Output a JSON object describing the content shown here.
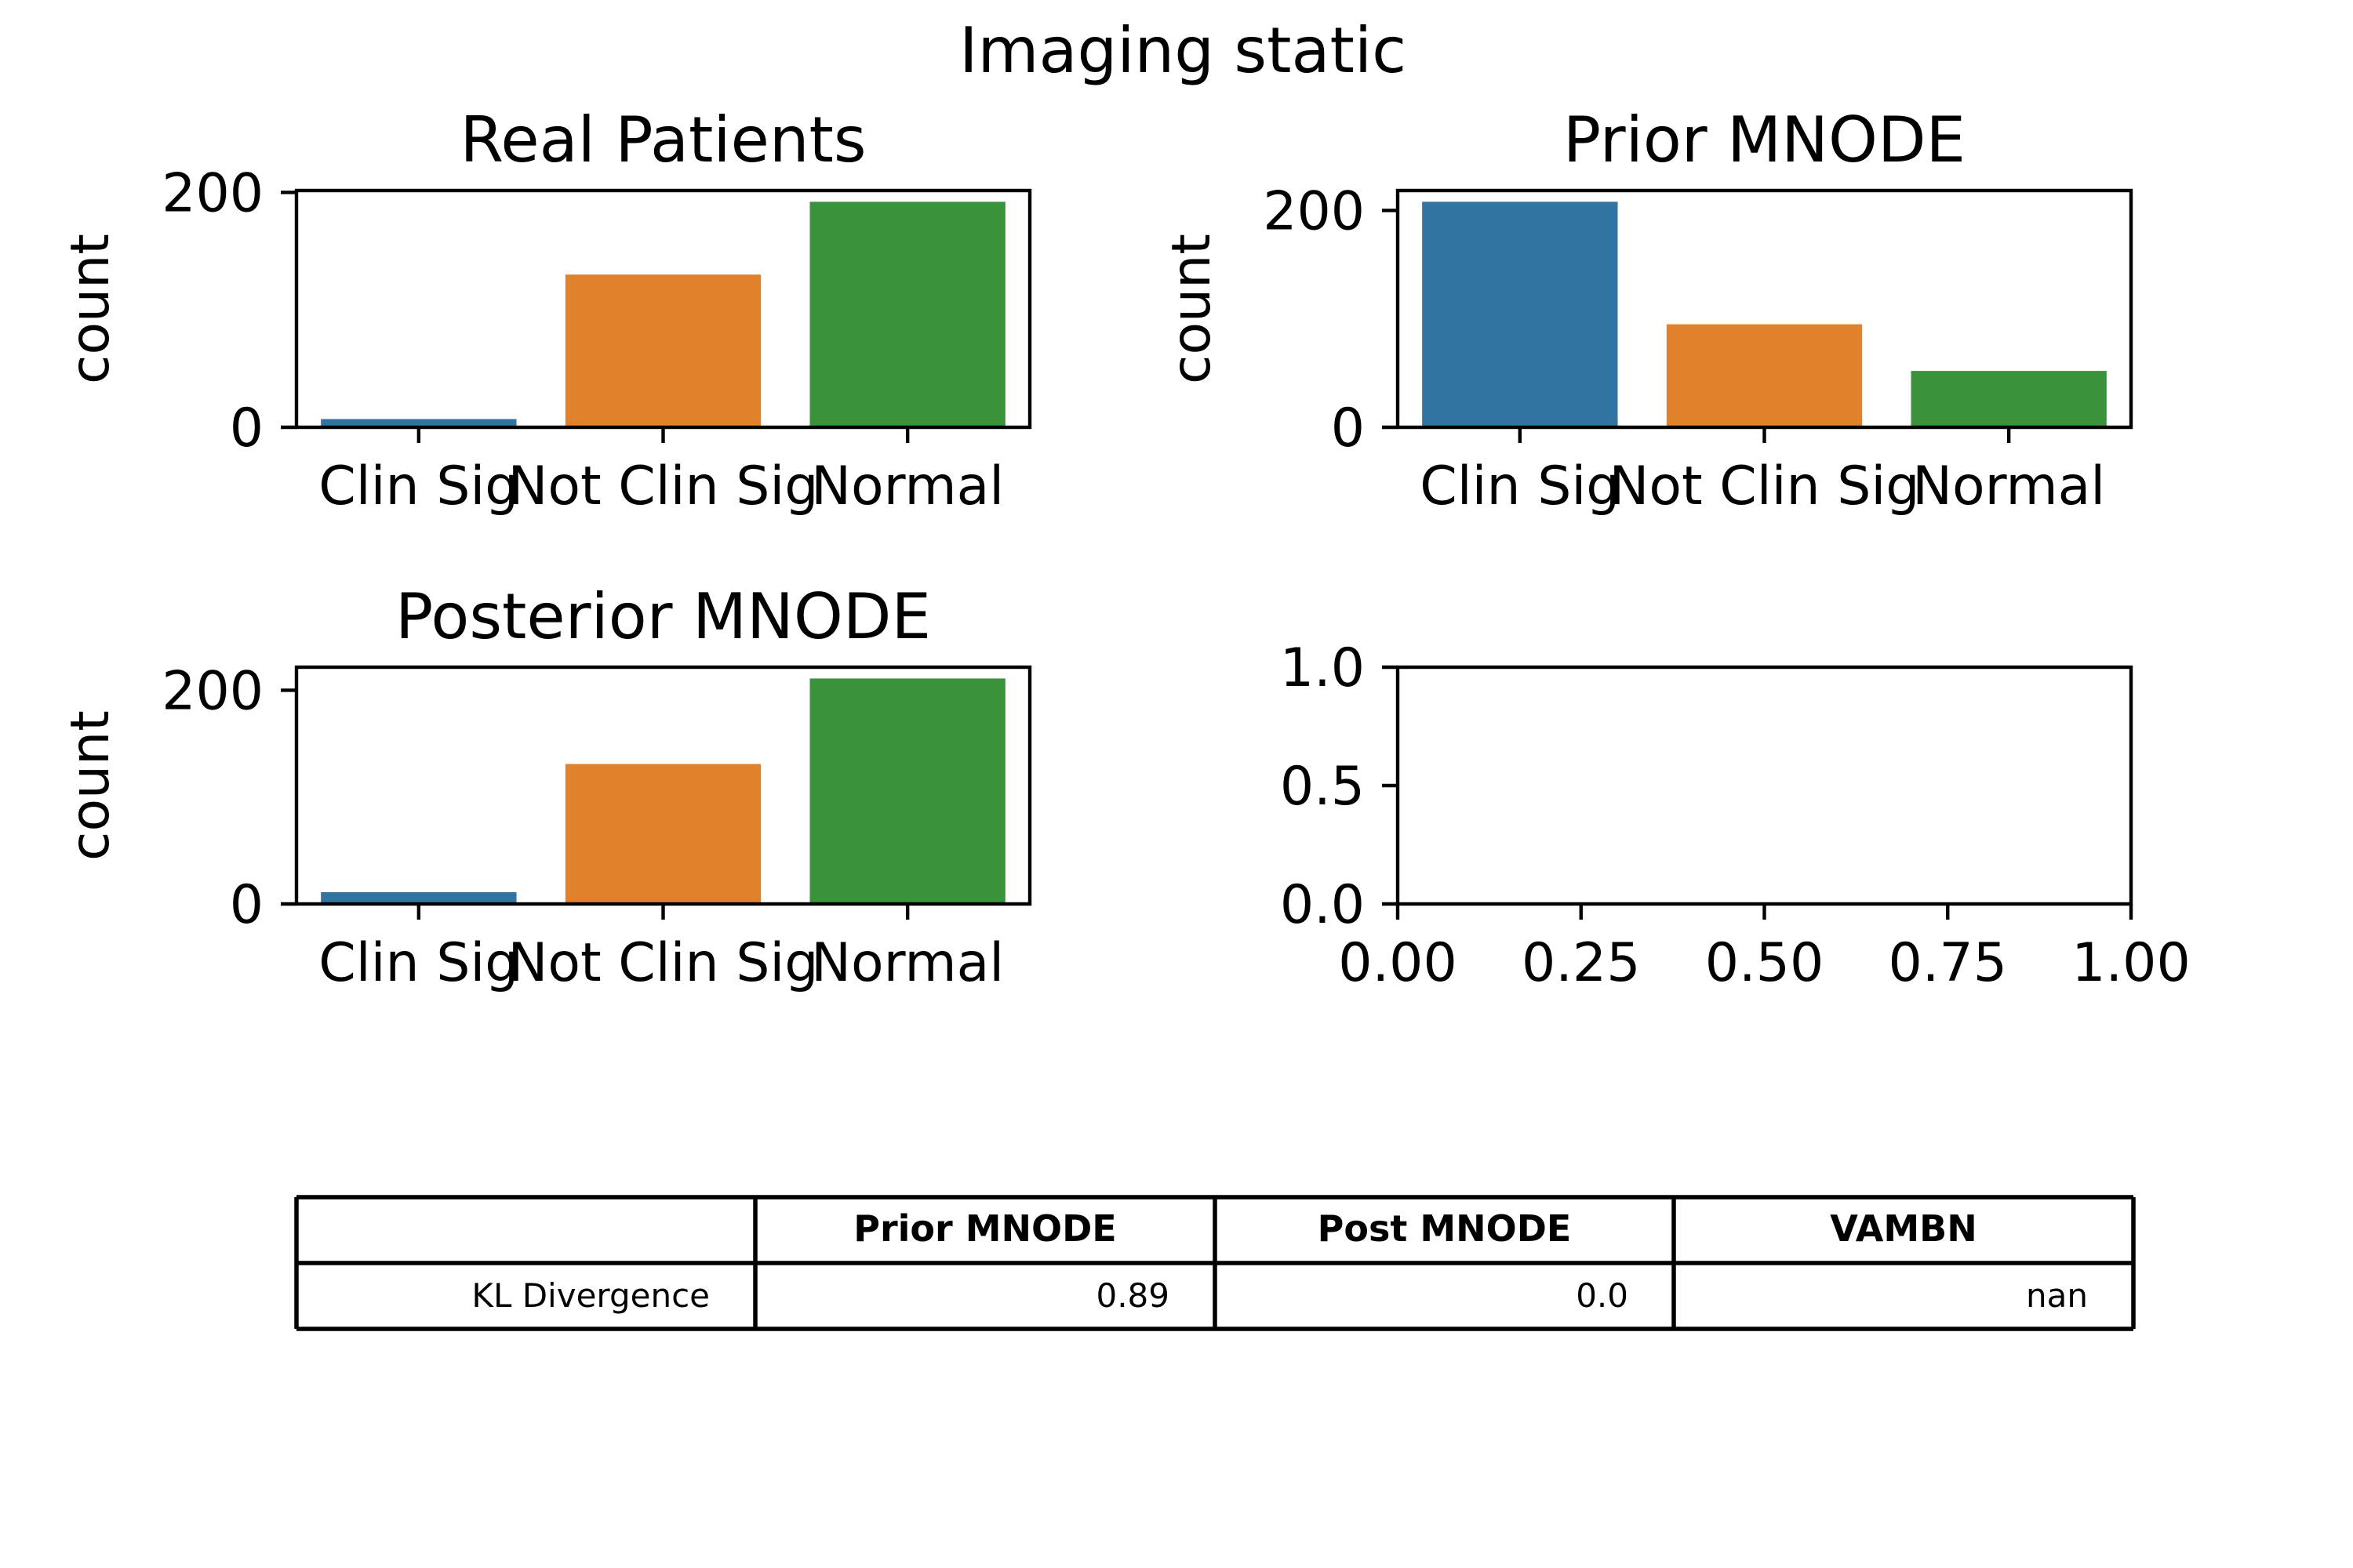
{
  "figure": {
    "title": "Imaging static"
  },
  "chart_data": [
    {
      "type": "bar",
      "title": "Real Patients",
      "xlabel": "",
      "ylabel": "count",
      "categories": [
        "Clin Sig",
        "Not Clin Sig",
        "Normal"
      ],
      "values": [
        7,
        130,
        192
      ],
      "colors": [
        "#3274a1",
        "#e1812c",
        "#3a923a"
      ],
      "ylim": [
        0,
        201.6
      ],
      "yticks": [
        0,
        200
      ]
    },
    {
      "type": "bar",
      "title": "Prior MNODE",
      "xlabel": "",
      "ylabel": "count",
      "categories": [
        "Clin Sig",
        "Not Clin Sig",
        "Normal"
      ],
      "values": [
        208,
        95,
        52
      ],
      "colors": [
        "#3274a1",
        "#e1812c",
        "#3a923a"
      ],
      "ylim": [
        0,
        218.4
      ],
      "yticks": [
        0,
        200
      ]
    },
    {
      "type": "bar",
      "title": "Posterior MNODE",
      "xlabel": "",
      "ylabel": "count",
      "categories": [
        "Clin Sig",
        "Not Clin Sig",
        "Normal"
      ],
      "values": [
        11,
        131,
        211
      ],
      "colors": [
        "#3274a1",
        "#e1812c",
        "#3a923a"
      ],
      "ylim": [
        0,
        221.6
      ],
      "yticks": [
        0,
        200
      ]
    },
    {
      "type": "scatter",
      "title": "",
      "xlabel": "",
      "ylabel": "",
      "xlim": [
        0,
        1
      ],
      "ylim": [
        0,
        1
      ],
      "xticks": [
        "0.00",
        "0.25",
        "0.50",
        "0.75",
        "1.00"
      ],
      "yticks": [
        "0.0",
        "0.5",
        "1.0"
      ],
      "series": []
    },
    {
      "type": "table",
      "columns": [
        "",
        "Prior MNODE",
        "Post MNODE",
        "VAMBN"
      ],
      "rows": [
        [
          "KL Divergence",
          "0.89",
          "0.0",
          "nan"
        ]
      ]
    }
  ]
}
